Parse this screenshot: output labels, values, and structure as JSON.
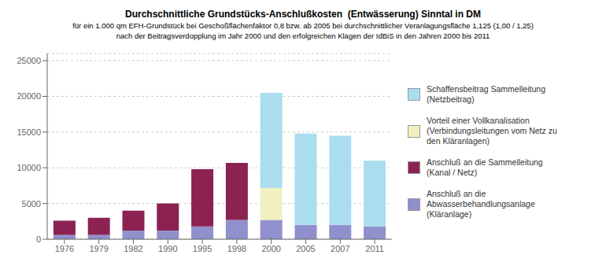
{
  "chart_data": {
    "type": "bar",
    "title": "Durchschnittliche Grundstücks-Anschlußkosten  (Entwässerung) Sinntal in DM",
    "subtitle": [
      "für ein 1.000 qm EFH-Grundstück bei Geschoßflächenfaktor 0,8 bzw. ab 2005 bei durchschnittlicher Veranlagungsfläche 1,125 (1,00 / 1,25)",
      "nach der Beitragsverdopplung im Jahr 2000 und den erfolgreichen Klagen der IdBiS in den Jahren 2000 bis 2011"
    ],
    "categories": [
      "1976",
      "1979",
      "1982",
      "1990",
      "1995",
      "1998",
      "2000",
      "2005",
      "2007",
      "2011"
    ],
    "series": [
      {
        "name": "Anschluß an die\nAbwasserbehandlungsanlage\n(Kläranlage)",
        "color": "#9090cc",
        "values": [
          600,
          600,
          1200,
          1200,
          1800,
          2700,
          2700,
          2000,
          2000,
          1800
        ]
      },
      {
        "name": "Anschluß an die Sammelleitung\n(Kanal / Netz)",
        "color": "#8b2252",
        "values": [
          2000,
          2400,
          2800,
          3800,
          8000,
          8000,
          0,
          0,
          0,
          0
        ]
      },
      {
        "name": "Vorteil einer Vollkanalisation\n(Verbindungsleitungen vom Netz zu\nden Kläranlagen)",
        "color": "#f0f0c0",
        "values": [
          0,
          0,
          0,
          0,
          0,
          0,
          4500,
          0,
          0,
          0
        ]
      },
      {
        "name": "Schaffensbeitrag Sammelleitung\n(Netzbeitrag)",
        "color": "#aaddee",
        "values": [
          0,
          0,
          0,
          0,
          0,
          0,
          13300,
          12800,
          12500,
          9200
        ]
      }
    ],
    "ylim": [
      0,
      26000
    ],
    "yticks": [
      0,
      5000,
      10000,
      15000,
      20000,
      25000
    ],
    "grid": true,
    "stacked": true,
    "legend": "right"
  }
}
